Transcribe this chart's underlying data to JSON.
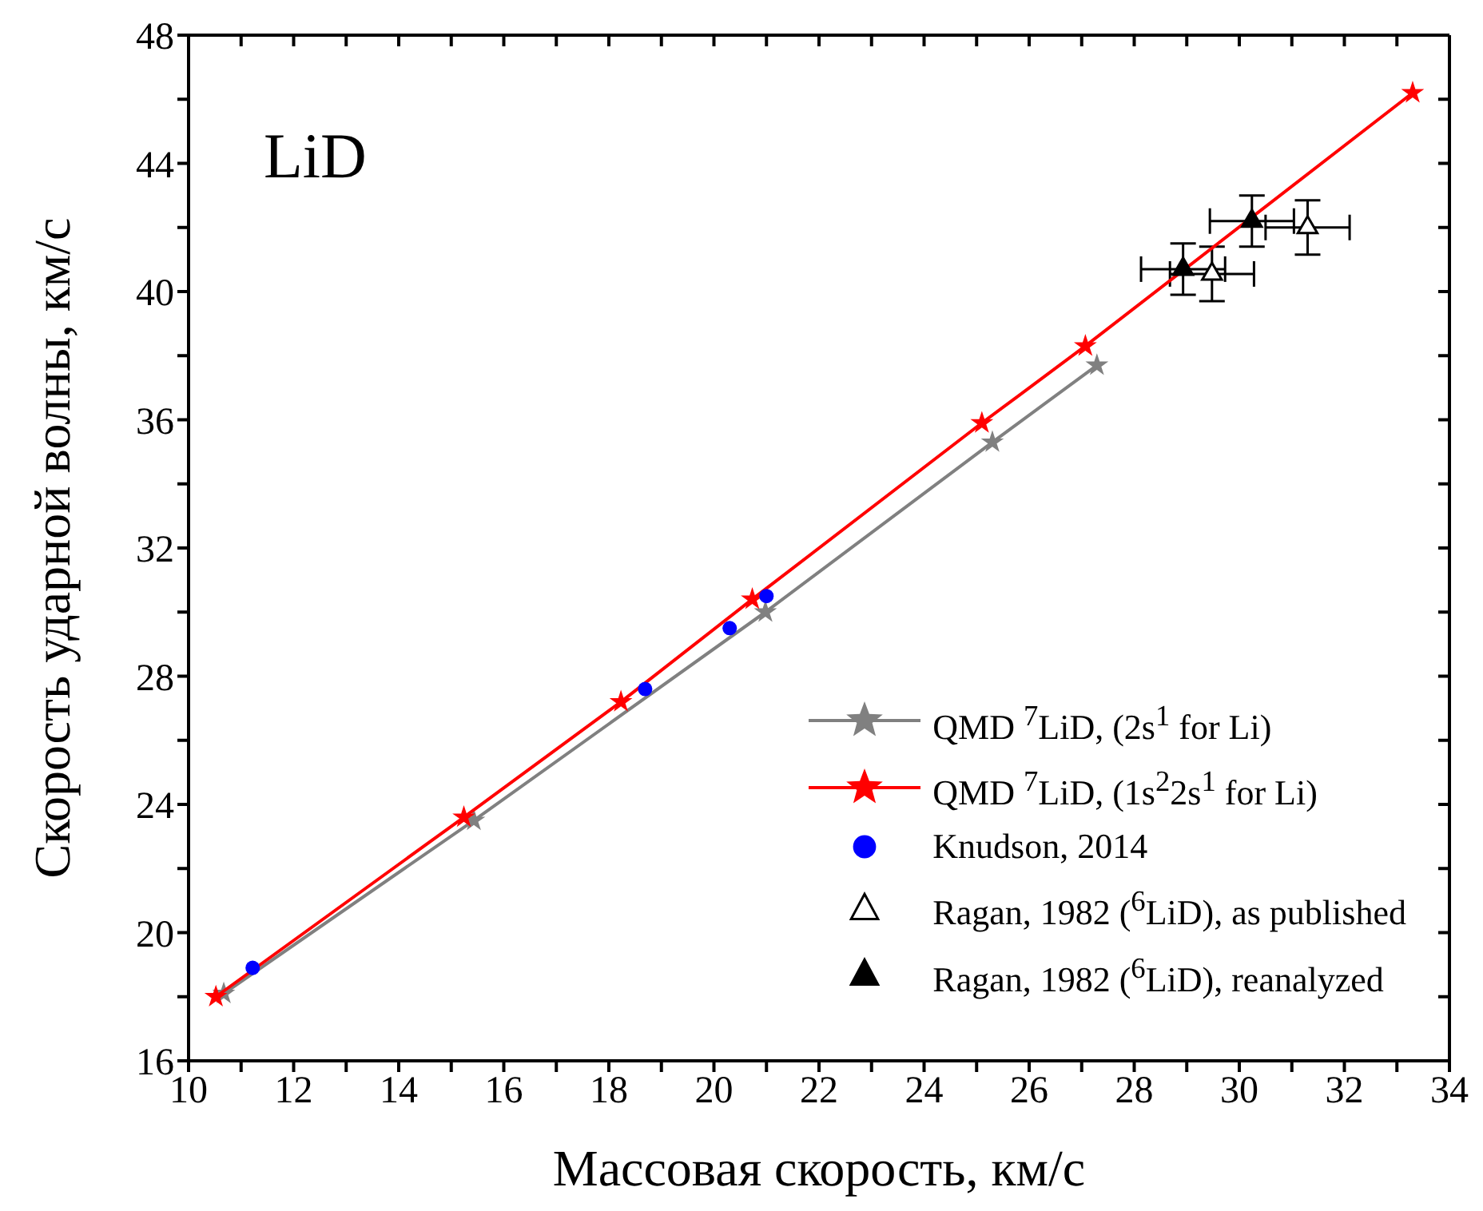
{
  "chart_data": {
    "type": "scatter",
    "xlabel": "Массовая скорость, км/с",
    "ylabel": "Скорость ударной волны, км/с",
    "annotations": [
      "LiD"
    ],
    "xlim": [
      10,
      34
    ],
    "xticks": [
      10,
      {
        "value": 11,
        "label": null
      },
      12,
      {
        "value": 13,
        "label": null
      },
      14,
      {
        "value": 15,
        "label": null
      },
      16,
      {
        "value": 17,
        "label": null
      },
      18,
      {
        "value": 19,
        "label": null
      },
      20,
      {
        "value": 21,
        "label": null
      },
      22,
      {
        "value": 23,
        "label": null
      },
      24,
      {
        "value": 25,
        "label": null
      },
      26,
      {
        "value": 27,
        "label": null
      },
      28,
      {
        "value": 29,
        "label": null
      },
      30,
      {
        "value": 31,
        "label": null
      },
      32,
      {
        "value": 33,
        "label": null
      },
      34
    ],
    "ylim": [
      16,
      48
    ],
    "yticks": [
      16,
      {
        "value": 18,
        "label": null
      },
      20,
      {
        "value": 22,
        "label": null
      },
      24,
      {
        "value": 26,
        "label": null
      },
      28,
      {
        "value": 30,
        "label": null
      },
      32,
      {
        "value": 34,
        "label": null
      },
      36,
      {
        "value": 38,
        "label": null
      },
      40,
      {
        "value": 42,
        "label": null
      },
      44,
      {
        "value": 46,
        "label": null
      },
      48
    ],
    "legend": "bottom right",
    "series": [
      {
        "name": "QMD $^{7}$LiD, (2s$^{1}$ for Li)",
        "type": "line",
        "marker": "star",
        "color": "#808080",
        "x": [
          10.67,
          15.43,
          20.98,
          25.3,
          27.29
        ],
        "values": [
          18.1,
          23.5,
          30.0,
          35.3,
          37.7
        ]
      },
      {
        "name": "QMD $^{7}$LiD, (1s$^{2}$2s$^{1}$ for Li)",
        "type": "line",
        "marker": "star",
        "color": "#ff0000",
        "x": [
          10.52,
          15.24,
          18.23,
          20.73,
          25.1,
          27.07,
          33.3
        ],
        "values": [
          18.0,
          23.6,
          27.2,
          30.4,
          35.9,
          38.3,
          46.2
        ]
      },
      {
        "name": "Knudson, 2014",
        "type": "scatter",
        "marker": "circle",
        "color": "#0000ff",
        "x": [
          11.22,
          18.69,
          20.3,
          21.0
        ],
        "values": [
          18.9,
          27.6,
          29.5,
          30.5
        ]
      },
      {
        "name": "Ragan, 1982 ($^{6}$LiD), as published",
        "type": "scatter",
        "marker": "triangle",
        "color": "#ffffff",
        "x": [
          29.48,
          31.3
        ],
        "values": [
          40.55,
          42.0
        ],
        "errors": [
          0.85,
          0.85
        ],
        "xerrors": [
          0.8,
          0.8
        ]
      },
      {
        "name": "Ragan, 1982 ($^{6}$LiD), reanalyzed",
        "type": "scatter",
        "marker": "triangle",
        "color": "#000000",
        "x": [
          28.93,
          30.24
        ],
        "values": [
          40.7,
          42.2
        ],
        "errors": [
          0.8,
          0.8
        ],
        "xerrors": [
          0.8,
          0.8
        ]
      }
    ]
  }
}
